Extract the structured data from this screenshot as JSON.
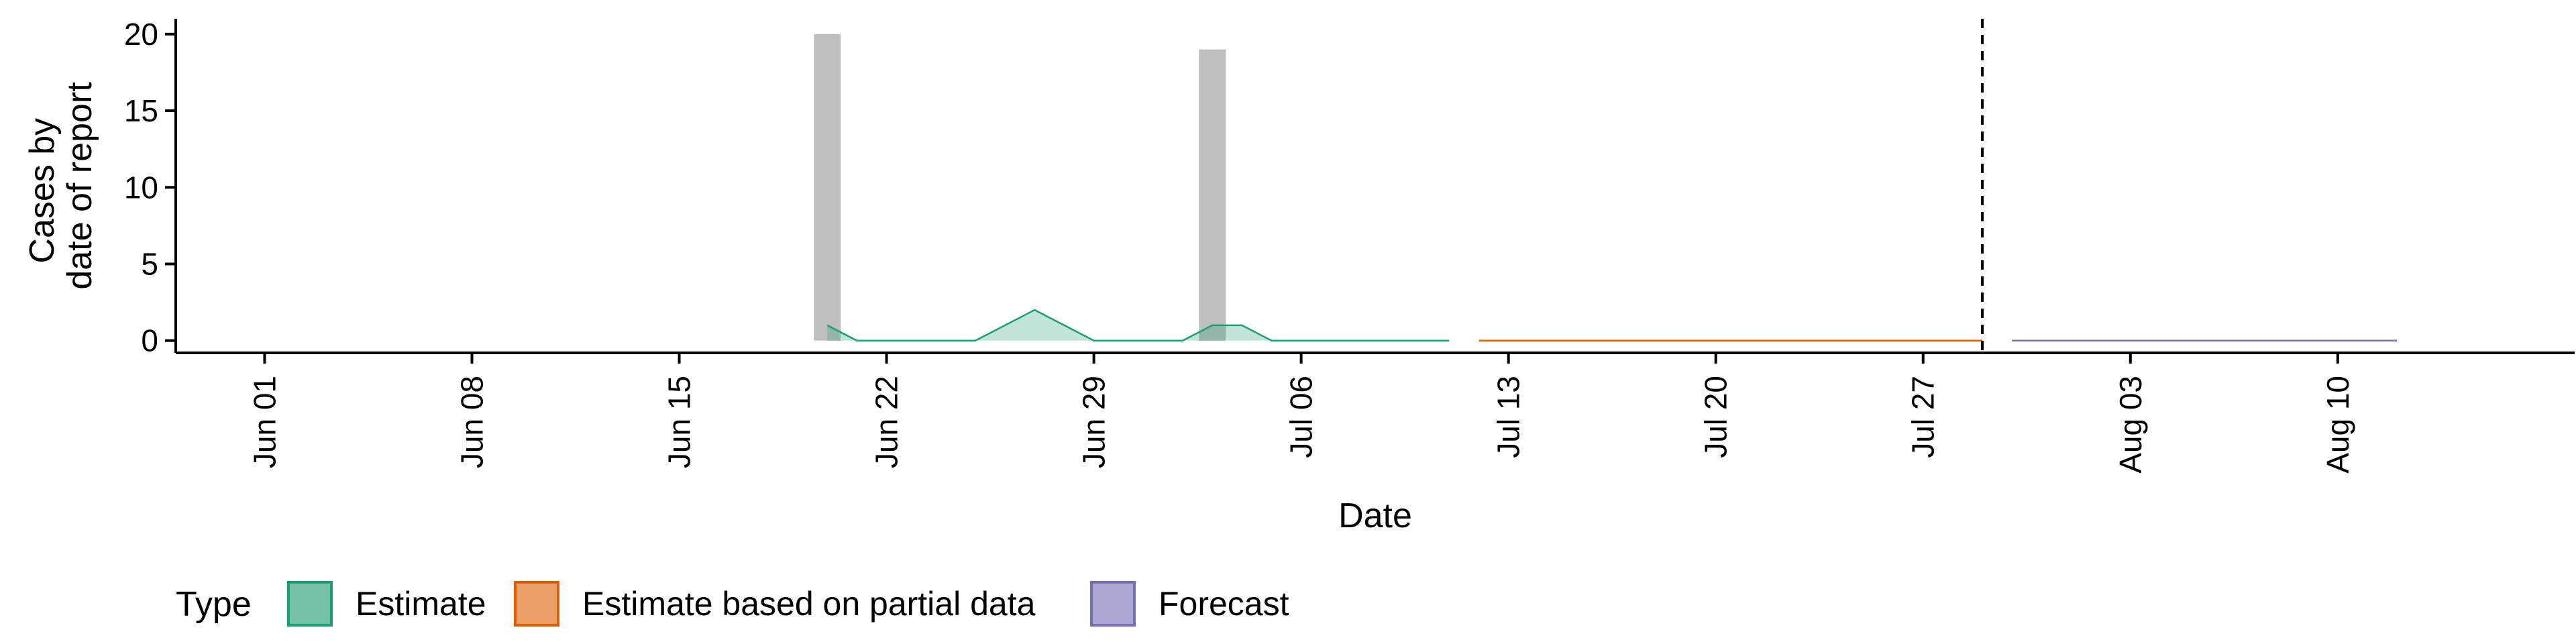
{
  "chart_data": {
    "type": "area",
    "xlabel": "Date",
    "ylabel_lines": [
      "Cases by",
      "date of report"
    ],
    "x_ticks": [
      "Jun 01",
      "Jun 08",
      "Jun 15",
      "Jun 22",
      "Jun 29",
      "Jul 06",
      "Jul 13",
      "Jul 20",
      "Jul 27",
      "Aug 03",
      "Aug 10"
    ],
    "x_tick_dates": [
      "2020-06-01",
      "2020-06-08",
      "2020-06-15",
      "2020-06-22",
      "2020-06-29",
      "2020-07-06",
      "2020-07-13",
      "2020-07-20",
      "2020-07-27",
      "2020-08-03",
      "2020-08-10"
    ],
    "xlim": [
      "2020-05-29",
      "2020-08-18"
    ],
    "y_ticks": [
      0,
      5,
      10,
      15,
      20
    ],
    "ylim": [
      -0.8,
      21
    ],
    "reported_cases": [
      {
        "date": "2020-06-20",
        "value": 20
      },
      {
        "date": "2020-07-03",
        "value": 19
      }
    ],
    "series": [
      {
        "name": "Estimate",
        "color": "#1b9e77",
        "points": [
          {
            "date": "2020-06-20",
            "value": 1
          },
          {
            "date": "2020-06-21",
            "value": 0
          },
          {
            "date": "2020-06-25",
            "value": 0
          },
          {
            "date": "2020-06-27",
            "value": 2
          },
          {
            "date": "2020-06-29",
            "value": 0
          },
          {
            "date": "2020-07-02",
            "value": 0
          },
          {
            "date": "2020-07-03",
            "value": 1
          },
          {
            "date": "2020-07-04",
            "value": 1
          },
          {
            "date": "2020-07-05",
            "value": 0
          },
          {
            "date": "2020-07-11",
            "value": 0
          }
        ]
      },
      {
        "name": "Estimate based on partial data",
        "color": "#d95f02",
        "points": [
          {
            "date": "2020-07-12",
            "value": 0
          },
          {
            "date": "2020-07-29",
            "value": 0
          }
        ]
      },
      {
        "name": "Forecast",
        "color": "#7570b3",
        "points": [
          {
            "date": "2020-07-30",
            "value": 0
          },
          {
            "date": "2020-08-12",
            "value": 0
          }
        ]
      }
    ],
    "vline_date": "2020-07-29",
    "legend": {
      "title": "Type",
      "position": "bottom-left",
      "items": [
        {
          "label": "Estimate",
          "fill": "#74c1a7",
          "border": "#1b9e77"
        },
        {
          "label": "Estimate based on partial data",
          "fill": "#eb9f66",
          "border": "#d95f02"
        },
        {
          "label": "Forecast",
          "fill": "#aaa8d2",
          "border": "#7570b3"
        }
      ]
    },
    "bar_color": "#bebebe",
    "grid": false
  }
}
